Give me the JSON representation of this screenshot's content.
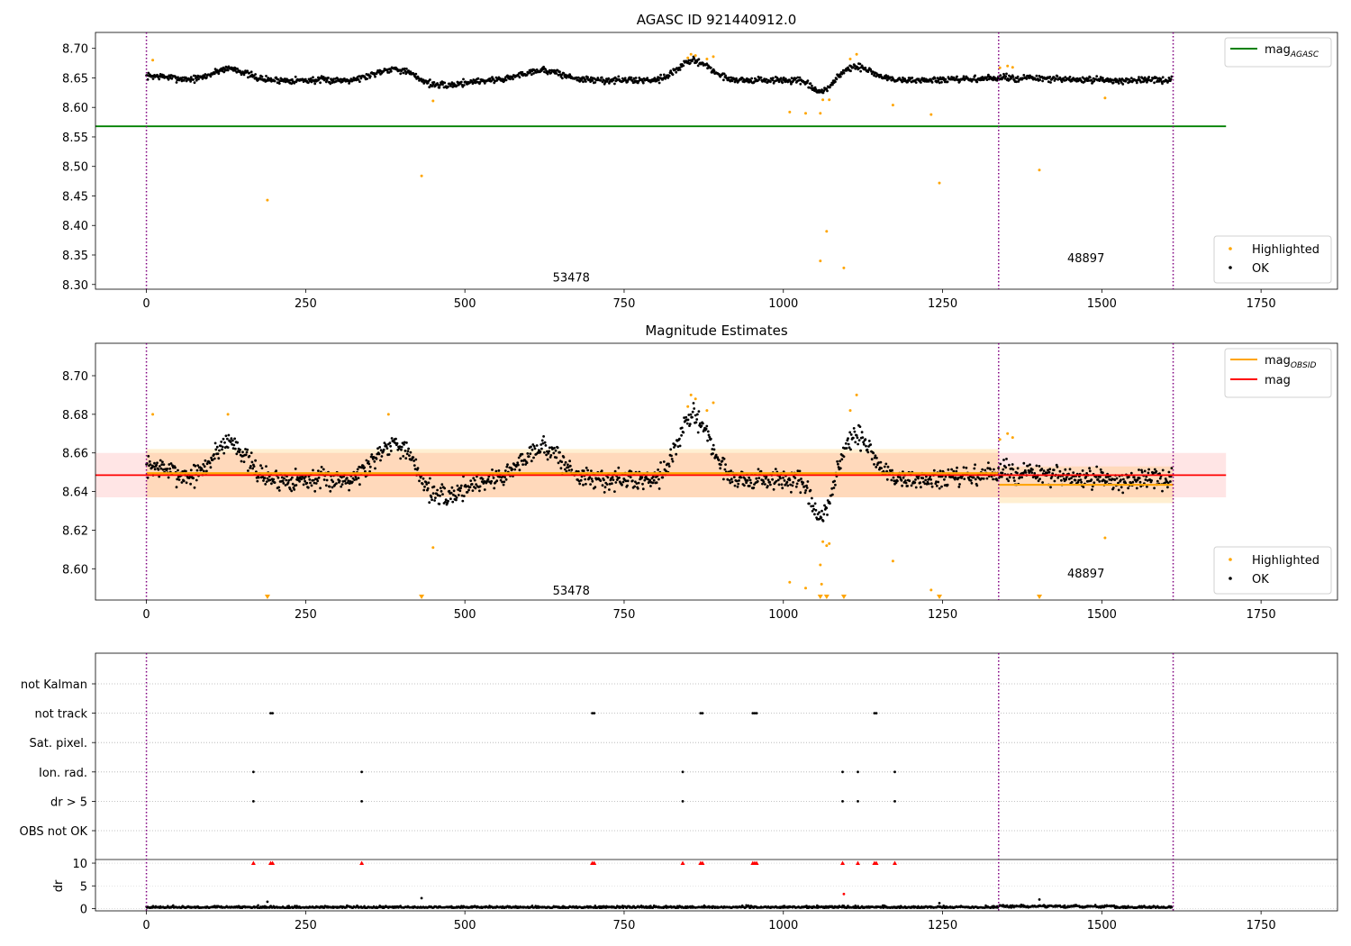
{
  "chart_data": [
    {
      "type": "scatter",
      "title": "AGASC ID 921440912.0",
      "xlim": [
        -80,
        1870
      ],
      "ylim": [
        8.292,
        8.727
      ],
      "xticks": [
        0,
        250,
        500,
        750,
        1000,
        1250,
        1500,
        1750
      ],
      "yticks": [
        8.3,
        8.35,
        8.4,
        8.45,
        8.5,
        8.55,
        8.6,
        8.65,
        8.7
      ],
      "vlines": [
        0,
        1338,
        1612
      ],
      "obsid_labels": [
        {
          "text": "53478",
          "x": 667,
          "y": 8.305
        },
        {
          "text": "48897",
          "x": 1475,
          "y": 8.338
        }
      ],
      "hlines": [
        {
          "name": "mag",
          "sub": "AGASC",
          "y": 8.568,
          "x0": -80,
          "x1": 1695,
          "color": "#008000"
        }
      ],
      "legend_lines": [
        {
          "name": "mag",
          "sub": "AGASC",
          "color": "#008000"
        }
      ],
      "legend_points": [
        {
          "name": "Highlighted",
          "color": "#ffa500"
        },
        {
          "name": "OK",
          "color": "#000000"
        }
      ],
      "highlighted": [
        [
          10,
          8.68
        ],
        [
          190,
          8.443
        ],
        [
          432,
          8.484
        ],
        [
          450,
          8.611
        ],
        [
          850,
          8.684
        ],
        [
          855,
          8.69
        ],
        [
          862,
          8.688
        ],
        [
          880,
          8.682
        ],
        [
          890,
          8.686
        ],
        [
          1010,
          8.592
        ],
        [
          1035,
          8.59
        ],
        [
          1058,
          8.59
        ],
        [
          1058,
          8.34
        ],
        [
          1062,
          8.613
        ],
        [
          1068,
          8.39
        ],
        [
          1072,
          8.613
        ],
        [
          1095,
          8.328
        ],
        [
          1105,
          8.682
        ],
        [
          1115,
          8.69
        ],
        [
          1172,
          8.604
        ],
        [
          1232,
          8.588
        ],
        [
          1245,
          8.472
        ],
        [
          1340,
          8.667
        ],
        [
          1352,
          8.67
        ],
        [
          1360,
          8.668
        ],
        [
          1402,
          8.494
        ],
        [
          1505,
          8.616
        ]
      ]
    },
    {
      "type": "scatter",
      "title": "Magnitude Estimates",
      "xlim": [
        -80,
        1870
      ],
      "ylim": [
        8.5838,
        8.7168
      ],
      "xticks": [
        0,
        250,
        500,
        750,
        1000,
        1250,
        1500,
        1750
      ],
      "yticks": [
        8.6,
        8.62,
        8.64,
        8.66,
        8.68,
        8.7
      ],
      "vlines": [
        0,
        1338,
        1612
      ],
      "obsid_labels": [
        {
          "text": "53478",
          "x": 667,
          "y": 8.5865
        },
        {
          "text": "48897",
          "x": 1475,
          "y": 8.5955
        }
      ],
      "mag": {
        "y": 8.6485,
        "band": [
          8.637,
          8.66
        ],
        "x0": -80,
        "x1": 1695,
        "color": "#ff0000"
      },
      "obsid_segments": [
        {
          "x0": 0,
          "x1": 1338,
          "y": 8.6495,
          "band": [
            8.637,
            8.662
          ]
        },
        {
          "x0": 1338,
          "x1": 1612,
          "y": 8.6435,
          "band": [
            8.634,
            8.653
          ]
        }
      ],
      "legend_lines": [
        {
          "name": "mag",
          "sub": "OBSID",
          "color": "#ffa500"
        },
        {
          "name": "mag",
          "sub": "",
          "color": "#ff0000"
        }
      ],
      "legend_points": [
        {
          "name": "Highlighted",
          "color": "#ffa500"
        },
        {
          "name": "OK",
          "color": "#000000"
        }
      ],
      "highlighted": [
        [
          10,
          8.68
        ],
        [
          128,
          8.68
        ],
        [
          380,
          8.68
        ],
        [
          450,
          8.611
        ],
        [
          850,
          8.684
        ],
        [
          855,
          8.69
        ],
        [
          862,
          8.688
        ],
        [
          880,
          8.682
        ],
        [
          890,
          8.686
        ],
        [
          1010,
          8.593
        ],
        [
          1035,
          8.59
        ],
        [
          1058,
          8.602
        ],
        [
          1060,
          8.592
        ],
        [
          1062,
          8.614
        ],
        [
          1068,
          8.612
        ],
        [
          1072,
          8.613
        ],
        [
          1105,
          8.682
        ],
        [
          1115,
          8.69
        ],
        [
          1172,
          8.604
        ],
        [
          1232,
          8.589
        ],
        [
          1340,
          8.667
        ],
        [
          1352,
          8.67
        ],
        [
          1360,
          8.668
        ],
        [
          1505,
          8.616
        ]
      ],
      "clipped": [
        190,
        432,
        1058,
        1068,
        1095,
        1245,
        1402
      ]
    },
    {
      "type": "scatter",
      "title": "",
      "xlim": [
        -80,
        1870
      ],
      "xticks": [
        0,
        250,
        500,
        750,
        1000,
        1250,
        1500,
        1750
      ],
      "vlines": [
        0,
        1338,
        1612
      ],
      "flag_labels": [
        "not Kalman",
        "not track",
        "Sat. pixel.",
        "Ion. rad.",
        "dr > 5",
        "OBS not OK"
      ],
      "flags": {
        "not Kalman": [],
        "not track": [
          195,
          198,
          700,
          703,
          870,
          873,
          952,
          955,
          958,
          1143,
          1146
        ],
        "Sat. pixel.": [],
        "Ion. rad.": [
          168,
          338,
          842,
          1093,
          1117,
          1175
        ],
        "dr > 5": [
          168,
          338,
          842,
          1093,
          1117,
          1175
        ],
        "OBS not OK": []
      },
      "dr_ticks": [
        0,
        5,
        10
      ],
      "dr_ylabel": "dr",
      "dr_ylim": [
        -0.5,
        10.8
      ],
      "dr_capped": [
        168,
        195,
        198,
        338,
        700,
        703,
        842,
        870,
        873,
        952,
        955,
        958,
        1093,
        1117,
        1143,
        1146,
        1175
      ],
      "dr_outliers": [
        [
          190,
          1.5
        ],
        [
          432,
          2.3
        ],
        [
          1095,
          3.2
        ],
        [
          1245,
          1.2
        ],
        [
          1402,
          2.0
        ]
      ]
    }
  ]
}
